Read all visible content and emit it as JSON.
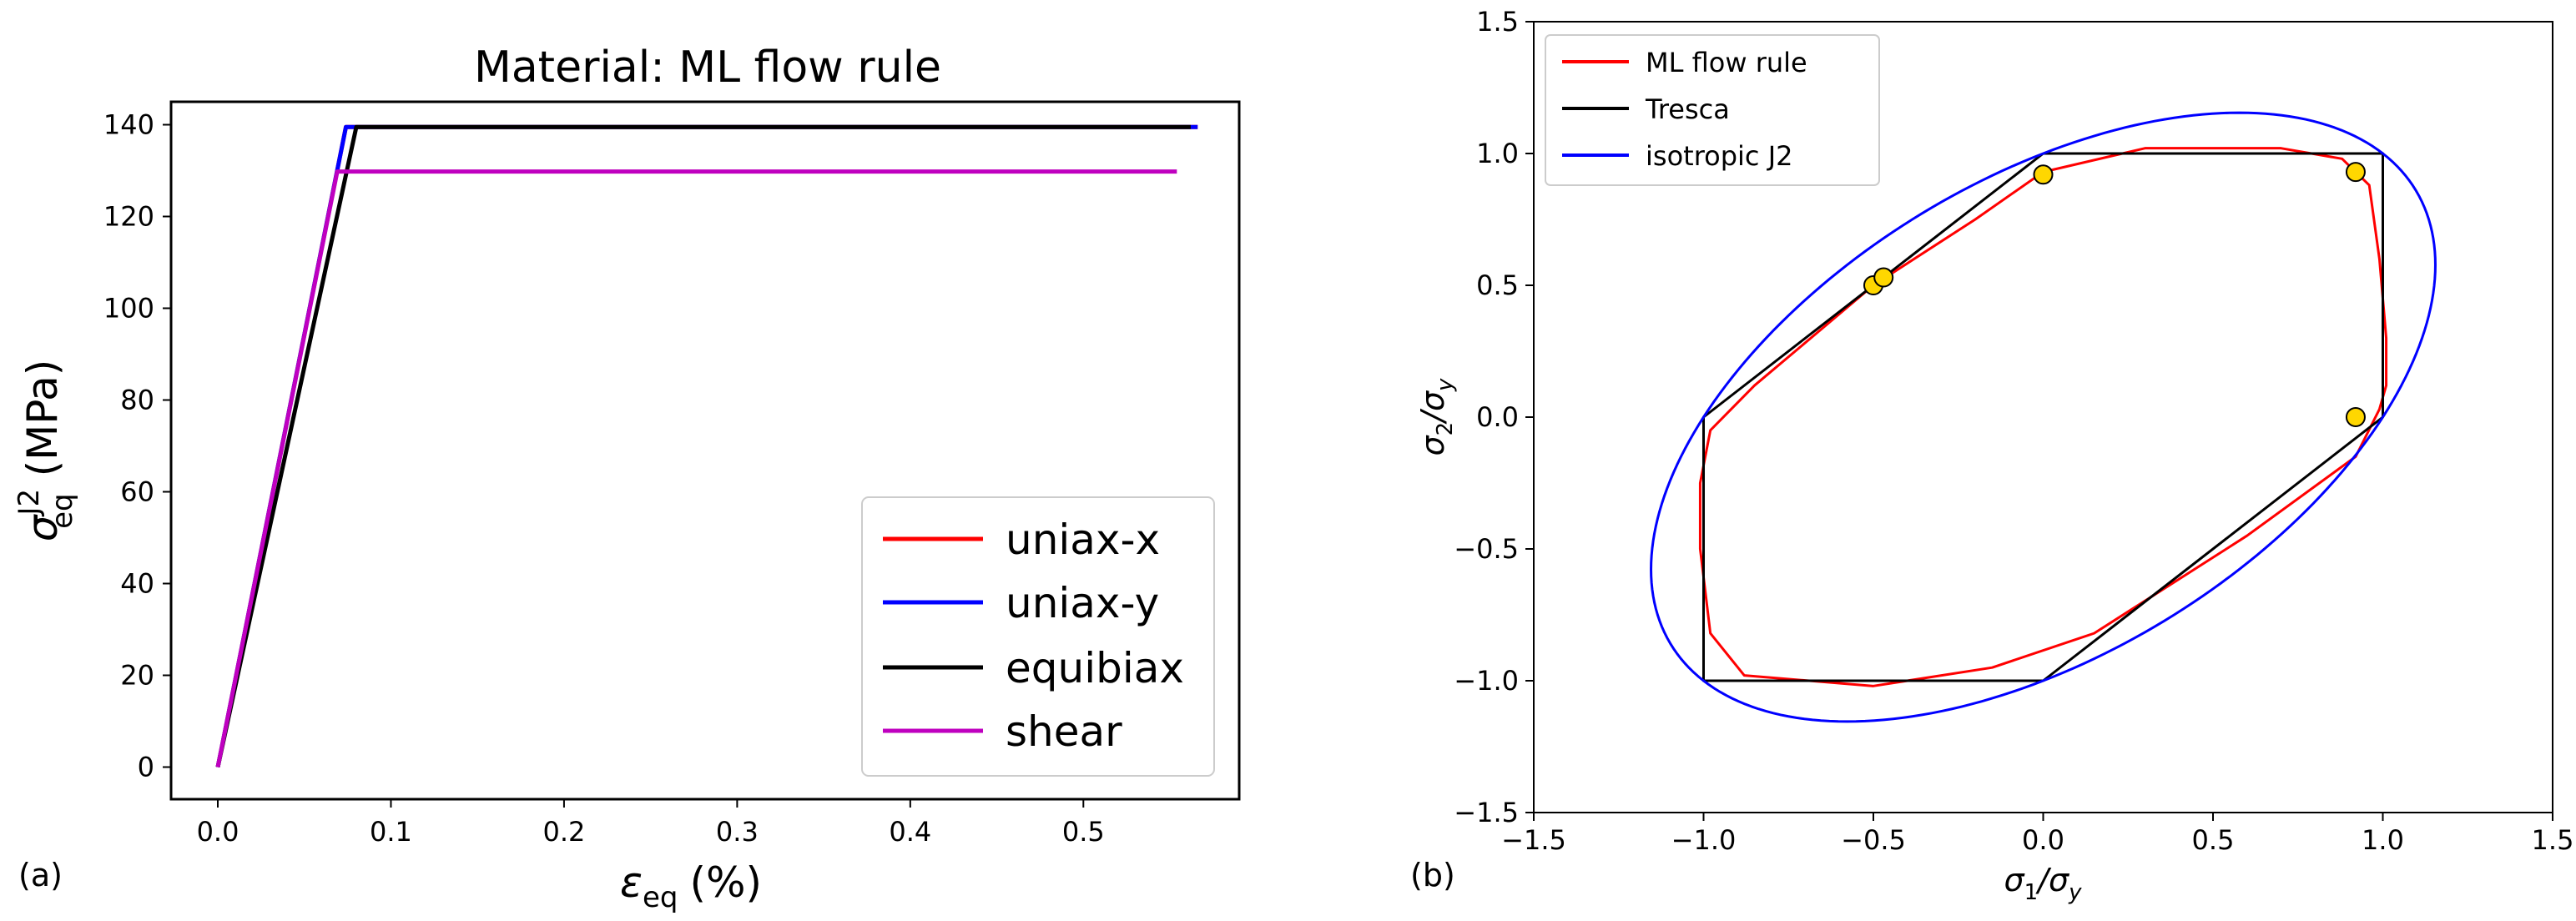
{
  "panel_a_label": "(a)",
  "panel_b_label": "(b)",
  "chart_data": [
    {
      "type": "line",
      "title": "Material: ML flow rule",
      "xlabel": "ε",
      "xlabel_sub": "eq",
      "xlabel_unit": "(%)",
      "ylabel": "σ",
      "ylabel_sup": "J2",
      "ylabel_sub": "eq",
      "ylabel_unit": "(MPa)",
      "xlim": [
        -0.027,
        0.59
      ],
      "ylim": [
        -7,
        145
      ],
      "xticks": [
        0.0,
        0.1,
        0.2,
        0.3,
        0.4,
        0.5
      ],
      "xtick_labels": [
        "0.0",
        "0.1",
        "0.2",
        "0.3",
        "0.4",
        "0.5"
      ],
      "yticks": [
        0,
        20,
        40,
        60,
        80,
        100,
        120,
        140
      ],
      "ytick_labels": [
        "0",
        "20",
        "40",
        "60",
        "80",
        "100",
        "120",
        "140"
      ],
      "legend_position": "lower-right",
      "series": [
        {
          "name": "uniax-x",
          "color": "#ff0000",
          "x": [
            0.0,
            0.074,
            0.566
          ],
          "y": [
            0,
            139.5,
            139.5
          ]
        },
        {
          "name": "uniax-y",
          "color": "#0000ff",
          "x": [
            0.0,
            0.074,
            0.566
          ],
          "y": [
            0,
            139.5,
            139.5
          ]
        },
        {
          "name": "equibiax",
          "color": "#000000",
          "x": [
            0.0,
            0.08,
            0.562
          ],
          "y": [
            0,
            139.5,
            139.5
          ]
        },
        {
          "name": "shear",
          "color": "#bf00bf",
          "x": [
            0.0,
            0.069,
            0.554
          ],
          "y": [
            0,
            129.8,
            129.8
          ]
        }
      ]
    },
    {
      "type": "line",
      "title": "",
      "xlabel": "σ",
      "xlabel_sub1": "1",
      "xlabel_slash": "/σ",
      "xlabel_sub2": "y",
      "ylabel": "σ",
      "ylabel_sub1": "2",
      "ylabel_slash": "/σ",
      "ylabel_sub2": "y",
      "xlim": [
        -1.5,
        1.5
      ],
      "ylim": [
        -1.5,
        1.5
      ],
      "xticks": [
        -1.5,
        -1.0,
        -0.5,
        0.0,
        0.5,
        1.0,
        1.5
      ],
      "xtick_labels": [
        "−1.5",
        "−1.0",
        "−0.5",
        "0.0",
        "0.5",
        "1.0",
        "1.5"
      ],
      "yticks": [
        -1.5,
        -1.0,
        -0.5,
        0.0,
        0.5,
        1.0,
        1.5
      ],
      "ytick_labels": [
        "−1.5",
        "−1.0",
        "−0.5",
        "0.0",
        "0.5",
        "1.0",
        "1.5"
      ],
      "legend_position": "top-left",
      "series": [
        {
          "name": "ML flow rule",
          "color": "#ff0000",
          "x": [
            0.0,
            0.3,
            0.7,
            0.88,
            0.96,
            0.99,
            1.01,
            1.01,
            0.99,
            0.92,
            0.6,
            0.15,
            -0.15,
            -0.5,
            -0.88,
            -0.98,
            -1.01,
            -1.01,
            -0.98,
            -0.85,
            -0.5,
            -0.2,
            0.0
          ],
          "y": [
            0.93,
            1.02,
            1.02,
            0.98,
            0.88,
            0.6,
            0.3,
            0.12,
            0.03,
            -0.15,
            -0.45,
            -0.82,
            -0.95,
            -1.02,
            -0.98,
            -0.82,
            -0.5,
            -0.25,
            -0.05,
            0.12,
            0.5,
            0.75,
            0.93
          ]
        },
        {
          "name": "Tresca",
          "color": "#000000",
          "x": [
            0.0,
            1.0,
            1.0,
            0.0,
            -1.0,
            -1.0,
            0.0
          ],
          "y": [
            1.0,
            1.0,
            0.0,
            -1.0,
            -1.0,
            0.0,
            1.0
          ]
        },
        {
          "name": "isotropic J2",
          "color": "#0000ff",
          "ellipse": "s1^2 - s1*s2 + s2^2 = 1"
        }
      ],
      "markers": {
        "color": "#ffd700",
        "edge_color": "#000000",
        "x": [
          0.0,
          0.92,
          -0.5,
          -0.47,
          0.92
        ],
        "y": [
          0.92,
          0.93,
          0.5,
          0.53,
          0.0
        ]
      }
    }
  ]
}
